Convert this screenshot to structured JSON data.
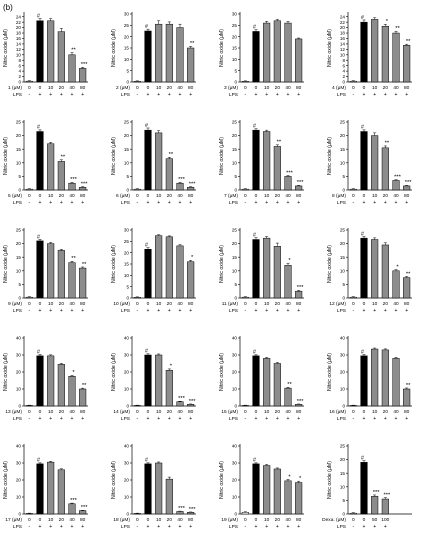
{
  "figure_label": "(b)",
  "common": {
    "ylabel": "Nitric oxide (μM)",
    "lps_label": "LPS",
    "lps_signs": [
      "-",
      "+",
      "+",
      "+",
      "+",
      "+"
    ],
    "colors": {
      "control": "#ffffff",
      "lps": "#000000",
      "treated": "#8c8c8c",
      "axis": "#000000"
    }
  },
  "chart_data": [
    {
      "type": "bar",
      "compound_label": "1 (μM)",
      "categories": [
        "0",
        "0",
        "10",
        "20",
        "40",
        "80"
      ],
      "values": [
        0.3,
        22.5,
        22.5,
        18.5,
        10,
        5
      ],
      "errors": [
        0.2,
        0.8,
        0.8,
        1.2,
        0.8,
        0.4
      ],
      "marks": [
        "",
        "#",
        "",
        "",
        "**",
        "***"
      ],
      "ylim": [
        0,
        25
      ],
      "yticks": [
        0,
        2,
        4,
        6,
        8,
        10,
        12,
        14,
        16,
        18,
        20,
        22,
        24
      ]
    },
    {
      "type": "bar",
      "compound_label": "2 (μM)",
      "categories": [
        "0",
        "0",
        "10",
        "20",
        "40",
        "80"
      ],
      "values": [
        0.3,
        22.5,
        25.5,
        25.5,
        24,
        15
      ],
      "errors": [
        0.2,
        0.8,
        1.5,
        1,
        1.5,
        0.7
      ],
      "marks": [
        "",
        "#",
        "",
        "",
        "",
        "**"
      ],
      "ylim": [
        0,
        30
      ],
      "yticks": [
        0,
        5,
        10,
        15,
        20,
        25,
        30
      ]
    },
    {
      "type": "bar",
      "compound_label": "3 (μM)",
      "categories": [
        "0",
        "0",
        "10",
        "20",
        "40",
        "80"
      ],
      "values": [
        0.3,
        22.3,
        26,
        27,
        26,
        19
      ],
      "errors": [
        0.2,
        0.8,
        0.8,
        0.6,
        0.7,
        0.4
      ],
      "marks": [
        "",
        "#",
        "",
        "",
        "",
        ""
      ],
      "ylim": [
        0,
        30
      ],
      "yticks": [
        0,
        5,
        10,
        15,
        20,
        25,
        30
      ]
    },
    {
      "type": "bar",
      "compound_label": "4 (μM)",
      "categories": [
        "0",
        "0",
        "10",
        "20",
        "40",
        "80"
      ],
      "values": [
        0.3,
        22,
        23,
        20.5,
        18,
        13.5
      ],
      "errors": [
        0.2,
        0.8,
        0.6,
        0.7,
        0.6,
        0.4
      ],
      "marks": [
        "",
        "#",
        "",
        "*",
        "**",
        "**"
      ],
      "ylim": [
        0,
        25
      ],
      "yticks": [
        0,
        2,
        4,
        6,
        8,
        10,
        12,
        14,
        16,
        18,
        20,
        22,
        24
      ]
    },
    {
      "type": "bar",
      "compound_label": "5 (μM)",
      "categories": [
        "0",
        "0",
        "10",
        "20",
        "40",
        "80"
      ],
      "values": [
        0.3,
        21.5,
        17,
        10.5,
        2.5,
        1
      ],
      "errors": [
        0.2,
        0.6,
        0.5,
        0.6,
        0.3,
        0.2
      ],
      "marks": [
        "",
        "#",
        "",
        "**",
        "***",
        "***"
      ],
      "ylim": [
        0,
        25
      ],
      "yticks": [
        0,
        5,
        10,
        15,
        20,
        25
      ]
    },
    {
      "type": "bar",
      "compound_label": "6 (μM)",
      "categories": [
        "0",
        "0",
        "10",
        "20",
        "40",
        "80"
      ],
      "values": [
        0.3,
        22,
        21,
        11.5,
        2.5,
        1
      ],
      "errors": [
        0.2,
        0.8,
        0.8,
        0.5,
        0.3,
        0.2
      ],
      "marks": [
        "",
        "#",
        "",
        "**",
        "***",
        "***"
      ],
      "ylim": [
        0,
        25
      ],
      "yticks": [
        0,
        5,
        10,
        15,
        20,
        25
      ]
    },
    {
      "type": "bar",
      "compound_label": "7 (μM)",
      "categories": [
        "0",
        "0",
        "10",
        "20",
        "40",
        "80"
      ],
      "values": [
        0.3,
        22,
        21.5,
        16,
        5,
        1.5
      ],
      "errors": [
        0.2,
        0.5,
        0.5,
        0.6,
        0.3,
        0.2
      ],
      "marks": [
        "",
        "#",
        "",
        "**",
        "***",
        "***"
      ],
      "ylim": [
        0,
        25
      ],
      "yticks": [
        0,
        5,
        10,
        15,
        20,
        25
      ]
    },
    {
      "type": "bar",
      "compound_label": "8 (μM)",
      "categories": [
        "0",
        "0",
        "10",
        "20",
        "40",
        "80"
      ],
      "values": [
        0.3,
        21.5,
        20,
        15.5,
        3.5,
        1.5
      ],
      "errors": [
        0.2,
        0.6,
        1,
        0.7,
        0.3,
        0.2
      ],
      "marks": [
        "",
        "#",
        "",
        "**",
        "***",
        "***"
      ],
      "ylim": [
        0,
        25
      ],
      "yticks": [
        0,
        5,
        10,
        15,
        20,
        25
      ]
    },
    {
      "type": "bar",
      "compound_label": "9 (μM)",
      "categories": [
        "0",
        "0",
        "10",
        "20",
        "40",
        "80"
      ],
      "values": [
        0.3,
        21,
        20,
        17.5,
        13,
        11
      ],
      "errors": [
        0.2,
        0.5,
        0.4,
        0.4,
        0.5,
        0.4
      ],
      "marks": [
        "",
        "#",
        "",
        "",
        "**",
        "**"
      ],
      "ylim": [
        0,
        25
      ],
      "yticks": [
        0,
        5,
        10,
        15,
        20,
        25
      ]
    },
    {
      "type": "bar",
      "compound_label": "10 (μM)",
      "categories": [
        "0",
        "0",
        "10",
        "20",
        "40",
        "80"
      ],
      "values": [
        0.3,
        21.5,
        27.5,
        27,
        23,
        16
      ],
      "errors": [
        0.2,
        0.7,
        0.4,
        0.4,
        0.5,
        0.6
      ],
      "marks": [
        "",
        "#",
        "",
        "",
        "",
        "*"
      ],
      "ylim": [
        0,
        30
      ],
      "yticks": [
        0,
        5,
        10,
        15,
        20,
        25,
        30
      ]
    },
    {
      "type": "bar",
      "compound_label": "11 (μM)",
      "categories": [
        "0",
        "0",
        "10",
        "20",
        "40",
        "80"
      ],
      "values": [
        0.3,
        21.5,
        22,
        19,
        12,
        2.5
      ],
      "errors": [
        0.2,
        0.7,
        0.6,
        1.2,
        0.8,
        0.3
      ],
      "marks": [
        "",
        "#",
        "",
        "",
        "*",
        "***"
      ],
      "ylim": [
        0,
        25
      ],
      "yticks": [
        0,
        5,
        10,
        15,
        20,
        25
      ]
    },
    {
      "type": "bar",
      "compound_label": "12 (μM)",
      "categories": [
        "0",
        "0",
        "10",
        "20",
        "40",
        "80"
      ],
      "values": [
        0.3,
        22,
        21.5,
        19.5,
        10,
        7.5
      ],
      "errors": [
        0.2,
        0.6,
        0.6,
        0.8,
        0.4,
        0.4
      ],
      "marks": [
        "",
        "#",
        "",
        "",
        "*",
        "**"
      ],
      "ylim": [
        0,
        25
      ],
      "yticks": [
        0,
        5,
        10,
        15,
        20,
        25
      ]
    },
    {
      "type": "bar",
      "compound_label": "13 (μM)",
      "categories": [
        "0",
        "0",
        "10",
        "20",
        "40",
        "80"
      ],
      "values": [
        0.3,
        29.5,
        29.5,
        24.5,
        17.5,
        10
      ],
      "errors": [
        0.2,
        0.8,
        0.6,
        0.6,
        0.5,
        0.5
      ],
      "marks": [
        "",
        "#",
        "",
        "",
        "*",
        "**"
      ],
      "ylim": [
        0,
        40
      ],
      "yticks": [
        0,
        10,
        20,
        30,
        40
      ]
    },
    {
      "type": "bar",
      "compound_label": "14 (μM)",
      "categories": [
        "0",
        "0",
        "10",
        "20",
        "40",
        "80"
      ],
      "values": [
        0.3,
        30,
        30,
        21,
        2.5,
        1
      ],
      "errors": [
        0.2,
        0.7,
        0.6,
        0.8,
        0.3,
        0.2
      ],
      "marks": [
        "",
        "#",
        "",
        "*",
        "***",
        "***"
      ],
      "ylim": [
        0,
        40
      ],
      "yticks": [
        0,
        10,
        20,
        30,
        40
      ]
    },
    {
      "type": "bar",
      "compound_label": "15 (μM)",
      "categories": [
        "0",
        "0",
        "10",
        "20",
        "40",
        "80"
      ],
      "values": [
        0.3,
        29.5,
        28,
        25,
        10.5,
        1
      ],
      "errors": [
        0.2,
        0.6,
        0.6,
        0.6,
        0.5,
        0.2
      ],
      "marks": [
        "",
        "#",
        "",
        "",
        "**",
        "***"
      ],
      "ylim": [
        0,
        40
      ],
      "yticks": [
        0,
        10,
        20,
        30,
        40
      ]
    },
    {
      "type": "bar",
      "compound_label": "16 (μM)",
      "categories": [
        "0",
        "0",
        "10",
        "20",
        "40",
        "80"
      ],
      "values": [
        0.3,
        29.5,
        33.5,
        33,
        28,
        10
      ],
      "errors": [
        0.2,
        0.7,
        0.6,
        0.6,
        0.6,
        0.6
      ],
      "marks": [
        "",
        "#",
        "",
        "",
        "",
        "**"
      ],
      "ylim": [
        0,
        40
      ],
      "yticks": [
        0,
        10,
        20,
        30,
        40
      ]
    },
    {
      "type": "bar",
      "compound_label": "17 (μM)",
      "categories": [
        "0",
        "0",
        "10",
        "20",
        "40",
        "80"
      ],
      "values": [
        0.3,
        29.5,
        30.5,
        26,
        6,
        2
      ],
      "errors": [
        0.2,
        0.6,
        0.5,
        0.6,
        0.4,
        0.2
      ],
      "marks": [
        "",
        "#",
        "",
        "",
        "***",
        "***"
      ],
      "ylim": [
        0,
        40
      ],
      "yticks": [
        0,
        10,
        20,
        30,
        40
      ]
    },
    {
      "type": "bar",
      "compound_label": "18 (μM)",
      "categories": [
        "0",
        "0",
        "10",
        "20",
        "40",
        "80"
      ],
      "values": [
        0.3,
        29.5,
        30,
        20.5,
        1.5,
        1
      ],
      "errors": [
        0.2,
        0.6,
        0.6,
        1.2,
        0.2,
        0.2
      ],
      "marks": [
        "",
        "#",
        "",
        "",
        "***",
        "***"
      ],
      "ylim": [
        0,
        40
      ],
      "yticks": [
        0,
        10,
        20,
        30,
        40
      ]
    },
    {
      "type": "bar",
      "compound_label": "19 (μM)",
      "categories": [
        "0",
        "0",
        "10",
        "20",
        "40",
        "80"
      ],
      "values": [
        1,
        29.5,
        28.5,
        26.5,
        19.5,
        18.5
      ],
      "errors": [
        0.3,
        0.6,
        0.6,
        0.6,
        0.8,
        0.8
      ],
      "marks": [
        "",
        "#",
        "",
        "",
        "*",
        "*"
      ],
      "ylim": [
        0,
        40
      ],
      "yticks": [
        0,
        10,
        20,
        30,
        40
      ]
    },
    {
      "type": "bar",
      "compound_label": "Dexa. (μM)",
      "categories": [
        "0",
        "0",
        "50",
        "100"
      ],
      "lps_signs": [
        "-",
        "+",
        "+",
        "+"
      ],
      "values": [
        0.3,
        19,
        6.5,
        5.5
      ],
      "errors": [
        0.2,
        0.6,
        0.5,
        0.5
      ],
      "marks": [
        "",
        "#",
        "***",
        "***"
      ],
      "ylim": [
        0,
        25
      ],
      "yticks": [
        0,
        5,
        10,
        15,
        20,
        25
      ]
    }
  ]
}
